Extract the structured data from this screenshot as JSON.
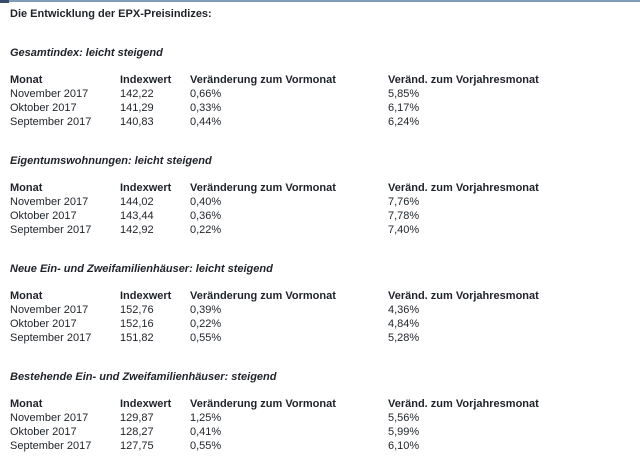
{
  "page": {
    "title": "Die Entwicklung der EPX-Preisindizes:"
  },
  "colors": {
    "top_border": "#7f9db9",
    "top_border_left_segment": "#3a4a6b",
    "text": "#1f2329",
    "background": "#ffffff"
  },
  "table_headers": [
    "Monat",
    "Indexwert",
    "Veränderung zum Vormonat",
    "Veränd. zum Vorjahresmonat"
  ],
  "sections": [
    {
      "heading": "Gesamtindex: leicht steigend",
      "rows": [
        {
          "monat": "November 2017",
          "indexwert": "142,22",
          "vormonat": "0,66%",
          "vorjahr": "5,85%"
        },
        {
          "monat": "Oktober 2017",
          "indexwert": "141,29",
          "vormonat": "0,33%",
          "vorjahr": "6,17%"
        },
        {
          "monat": "September 2017",
          "indexwert": "140,83",
          "vormonat": "0,44%",
          "vorjahr": "6,24%"
        }
      ]
    },
    {
      "heading": "Eigentumswohnungen: leicht steigend",
      "rows": [
        {
          "monat": "November 2017",
          "indexwert": "144,02",
          "vormonat": "0,40%",
          "vorjahr": "7,76%"
        },
        {
          "monat": "Oktober 2017",
          "indexwert": "143,44",
          "vormonat": "0,36%",
          "vorjahr": "7,78%"
        },
        {
          "monat": "September 2017",
          "indexwert": "142,92",
          "vormonat": "0,22%",
          "vorjahr": "7,40%"
        }
      ]
    },
    {
      "heading": "Neue Ein- und Zweifamilienhäuser: leicht steigend",
      "rows": [
        {
          "monat": "November 2017",
          "indexwert": "152,76",
          "vormonat": "0,39%",
          "vorjahr": "4,36%"
        },
        {
          "monat": "Oktober 2017",
          "indexwert": "152,16",
          "vormonat": "0,22%",
          "vorjahr": "4,84%"
        },
        {
          "monat": "September 2017",
          "indexwert": "151,82",
          "vormonat": "0,55%",
          "vorjahr": "5,28%"
        }
      ]
    },
    {
      "heading": "Bestehende Ein- und Zweifamilienhäuser: steigend",
      "rows": [
        {
          "monat": "November 2017",
          "indexwert": "129,87",
          "vormonat": "1,25%",
          "vorjahr": "5,56%"
        },
        {
          "monat": "Oktober 2017",
          "indexwert": "128,27",
          "vormonat": "0,41%",
          "vorjahr": "5,99%"
        },
        {
          "monat": "September 2017",
          "indexwert": "127,75",
          "vormonat": "0,55%",
          "vorjahr": "6,10%"
        }
      ]
    }
  ]
}
